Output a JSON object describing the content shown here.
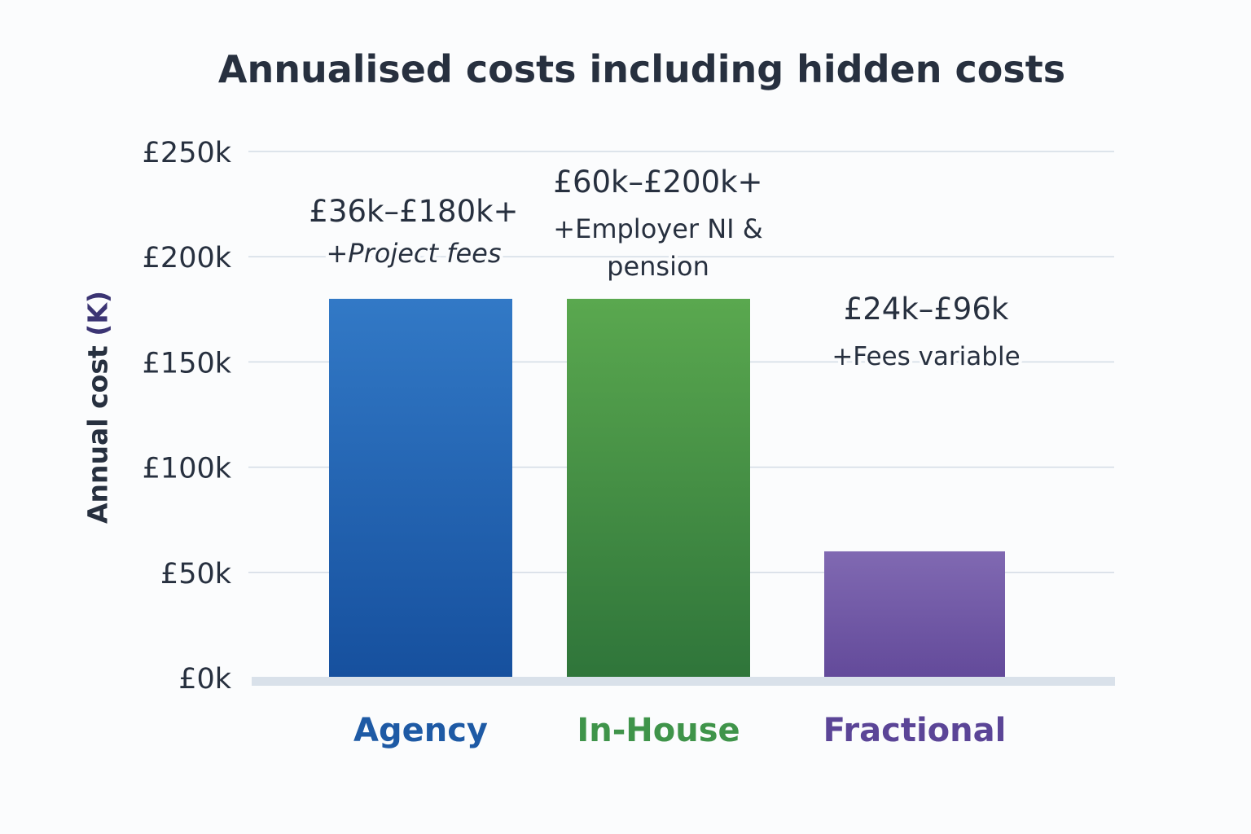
{
  "chart_data": {
    "type": "bar",
    "title": "Annualised costs including hidden costs",
    "ylabel": "Annual cost",
    "ylabel_unit": "(K)",
    "xlabel": "",
    "ylim": [
      0,
      250
    ],
    "yticks": [
      0,
      50,
      100,
      150,
      200,
      250
    ],
    "ytick_labels": [
      "£0k",
      "£50k",
      "£100k",
      "£150k",
      "£200k",
      "£250k"
    ],
    "grid": true,
    "legend": "none",
    "categories": [
      "Agency",
      "In-House",
      "Fractional"
    ],
    "values": [
      180,
      180,
      60
    ],
    "colors": [
      "#1f5fb0",
      "#3f944a",
      "#6e55a8"
    ],
    "annotations": [
      {
        "range": "£36k–£180k+",
        "note": "+Project fees",
        "note_italic": true
      },
      {
        "range": "£60k–£200k+",
        "note": "+Employer NI &",
        "note2": "pension",
        "note_italic": false
      },
      {
        "range": "£24k–£96k",
        "note": "+Fees variable",
        "note_italic": false
      }
    ]
  }
}
